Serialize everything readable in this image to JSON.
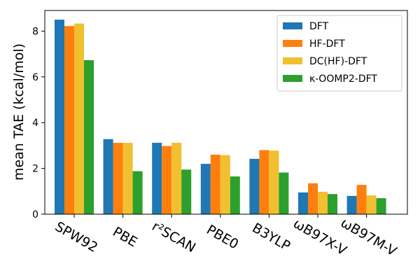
{
  "chart_data": {
    "type": "bar",
    "title": "",
    "xlabel": "",
    "ylabel": "mean TAE (kcal/mol)",
    "ylim": [
      0,
      8.9
    ],
    "yticks": [
      0,
      2,
      4,
      6,
      8
    ],
    "grid": false,
    "legend_position": "top-right",
    "categories": [
      "SPW92",
      "PBE",
      "r²SCAN",
      "PBE0",
      "B3YLP",
      "ωB97X-V",
      "ωB97M-V"
    ],
    "series": [
      {
        "name": "DFT",
        "color": "#1f77b4",
        "values": [
          8.5,
          3.28,
          3.12,
          2.2,
          2.42,
          0.95,
          0.8
        ]
      },
      {
        "name": "HF-DFT",
        "color": "#ff7f0e",
        "values": [
          8.22,
          3.12,
          2.98,
          2.6,
          2.8,
          1.35,
          1.28
        ]
      },
      {
        "name": "DC(HF)-DFT",
        "color": "#f0c030",
        "values": [
          8.33,
          3.12,
          3.12,
          2.58,
          2.78,
          0.98,
          0.82
        ]
      },
      {
        "name": "κ-OOMP2-DFT",
        "color": "#2ca02c",
        "values": [
          6.73,
          1.88,
          1.95,
          1.65,
          1.82,
          0.88,
          0.7
        ]
      }
    ]
  }
}
